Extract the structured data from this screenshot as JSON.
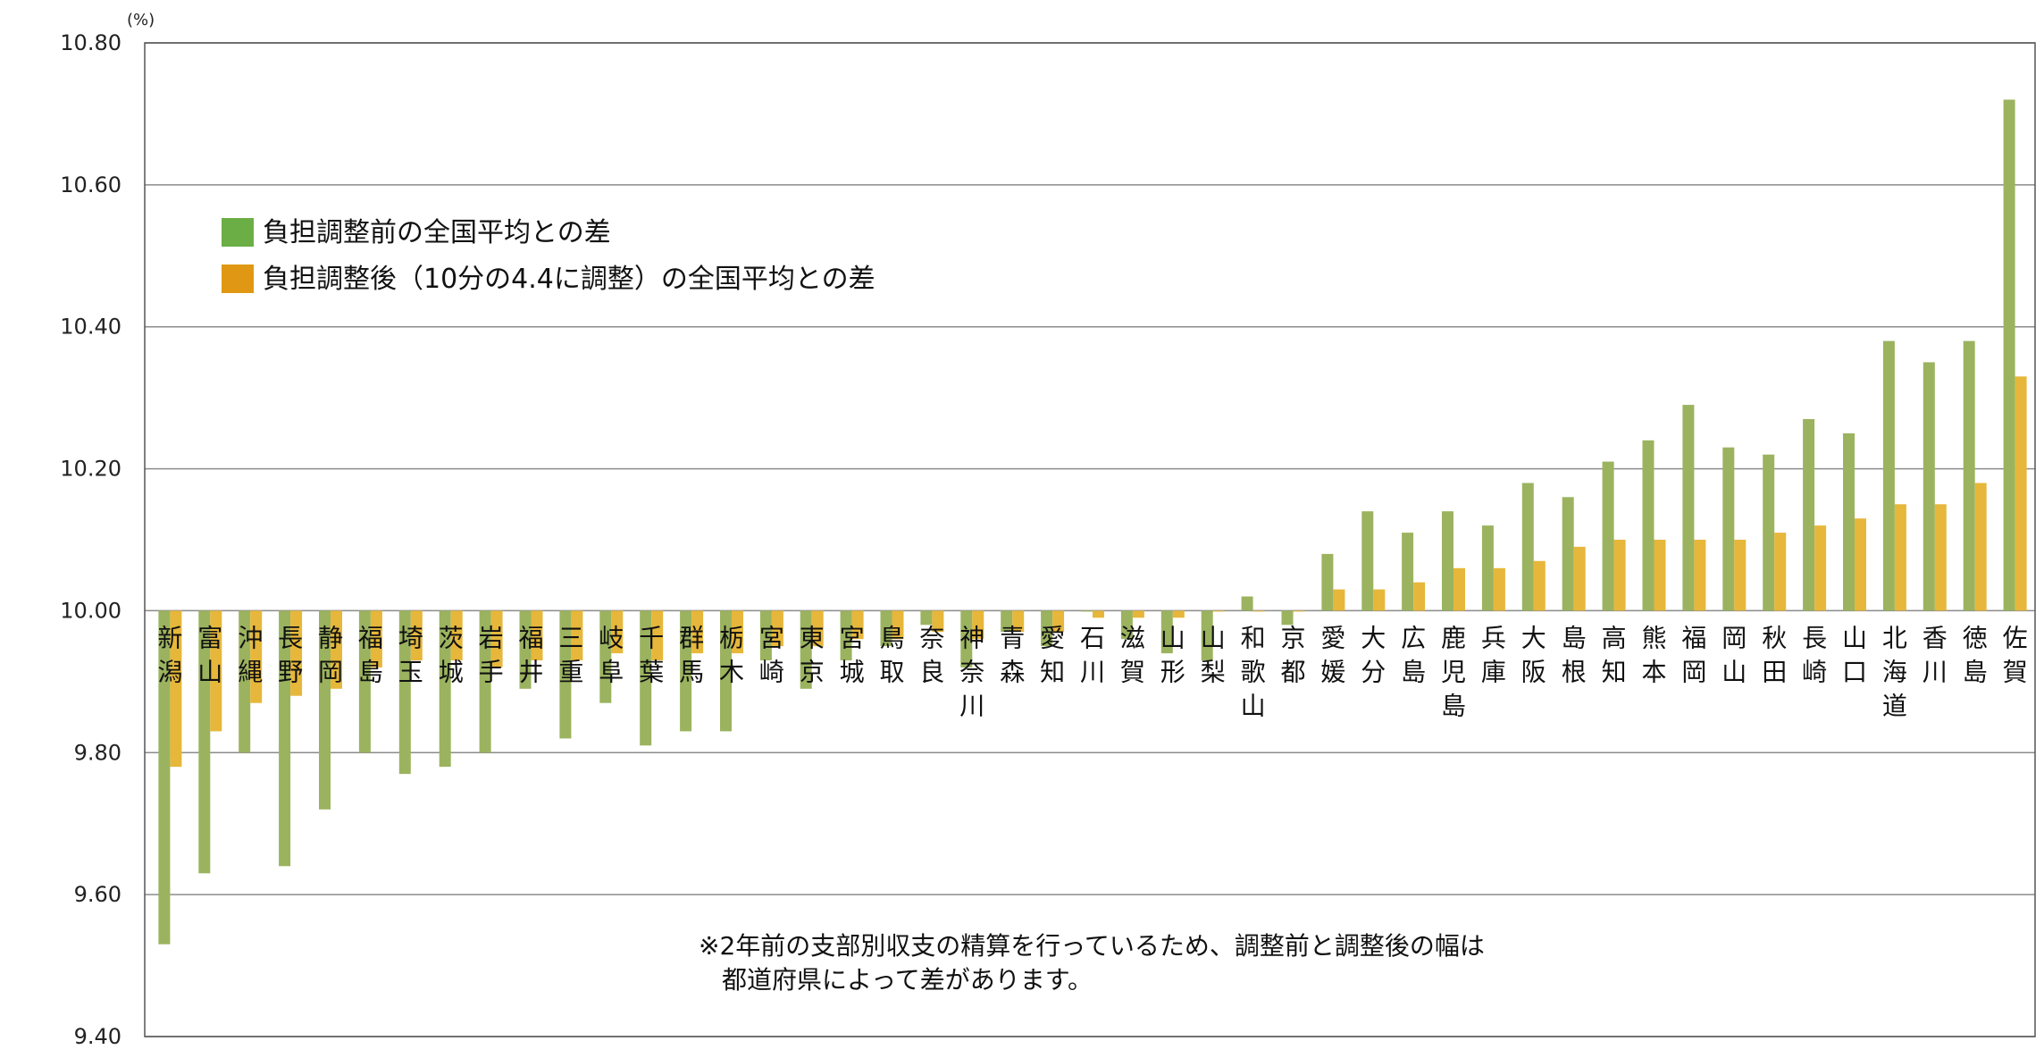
{
  "chart_data": {
    "type": "bar",
    "unit_label": "(%)",
    "ylim": [
      9.4,
      10.8
    ],
    "baseline": 10.0,
    "yticks": [
      "10.80",
      "10.60",
      "10.40",
      "10.20",
      "10.00",
      "9.80",
      "9.60",
      "9.40"
    ],
    "grid": true,
    "legend_position": "upper-left",
    "categories": [
      [
        "新",
        "潟"
      ],
      [
        "富",
        "山"
      ],
      [
        "沖",
        "縄"
      ],
      [
        "長",
        "野"
      ],
      [
        "静",
        "岡"
      ],
      [
        "福",
        "島"
      ],
      [
        "埼",
        "玉"
      ],
      [
        "茨",
        "城"
      ],
      [
        "岩",
        "手"
      ],
      [
        "福",
        "井"
      ],
      [
        "三",
        "重"
      ],
      [
        "岐",
        "阜"
      ],
      [
        "千",
        "葉"
      ],
      [
        "群",
        "馬"
      ],
      [
        "栃",
        "木"
      ],
      [
        "宮",
        "崎"
      ],
      [
        "東",
        "京"
      ],
      [
        "宮",
        "城"
      ],
      [
        "鳥",
        "取"
      ],
      [
        "奈",
        "良"
      ],
      [
        "神",
        "奈",
        "川"
      ],
      [
        "青",
        "森"
      ],
      [
        "愛",
        "知"
      ],
      [
        "石",
        "川"
      ],
      [
        "滋",
        "賀"
      ],
      [
        "山",
        "形"
      ],
      [
        "山",
        "梨"
      ],
      [
        "和",
        "歌",
        "山"
      ],
      [
        "京",
        "都"
      ],
      [
        "愛",
        "媛"
      ],
      [
        "大",
        "分"
      ],
      [
        "広",
        "島"
      ],
      [
        "鹿",
        "児",
        "島"
      ],
      [
        "兵",
        "庫"
      ],
      [
        "大",
        "阪"
      ],
      [
        "島",
        "根"
      ],
      [
        "高",
        "知"
      ],
      [
        "熊",
        "本"
      ],
      [
        "福",
        "岡"
      ],
      [
        "岡",
        "山"
      ],
      [
        "秋",
        "田"
      ],
      [
        "長",
        "崎"
      ],
      [
        "山",
        "口"
      ],
      [
        "北",
        "海",
        "道"
      ],
      [
        "香",
        "川"
      ],
      [
        "徳",
        "島"
      ],
      [
        "佐",
        "賀"
      ]
    ],
    "series": [
      {
        "name": "負担調整前の全国平均との差",
        "color": "#9bb35f",
        "legend_color": "#6aae45",
        "values": [
          9.53,
          9.63,
          9.8,
          9.64,
          9.72,
          9.8,
          9.77,
          9.78,
          9.8,
          9.89,
          9.82,
          9.87,
          9.81,
          9.83,
          9.83,
          9.93,
          9.89,
          9.93,
          9.95,
          9.98,
          9.92,
          9.97,
          9.95,
          10.0,
          9.96,
          9.94,
          9.93,
          10.02,
          9.98,
          10.08,
          10.14,
          10.11,
          10.14,
          10.12,
          10.18,
          10.16,
          10.21,
          10.24,
          10.29,
          10.23,
          10.22,
          10.27,
          10.25,
          10.38,
          10.35,
          10.38,
          10.72
        ]
      },
      {
        "name": "負担調整後（10分の4.4に調整）の全国平均との差",
        "color": "#e6b73b",
        "legend_color": "#e09814",
        "values": [
          9.78,
          9.83,
          9.87,
          9.88,
          9.89,
          9.92,
          9.93,
          9.93,
          9.92,
          9.93,
          9.93,
          9.94,
          9.93,
          9.94,
          9.94,
          9.95,
          9.95,
          9.96,
          9.96,
          9.97,
          9.96,
          9.97,
          9.97,
          9.99,
          9.99,
          9.99,
          10.0,
          10.0,
          10.0,
          10.03,
          10.03,
          10.04,
          10.06,
          10.06,
          10.07,
          10.09,
          10.1,
          10.1,
          10.1,
          10.1,
          10.11,
          10.12,
          10.13,
          10.15,
          10.15,
          10.18,
          10.33
        ]
      }
    ],
    "note": [
      "※2年前の支部別収支の精算を行っているため、調整前と調整後の幅は",
      "都道府県によって差があります。"
    ]
  }
}
